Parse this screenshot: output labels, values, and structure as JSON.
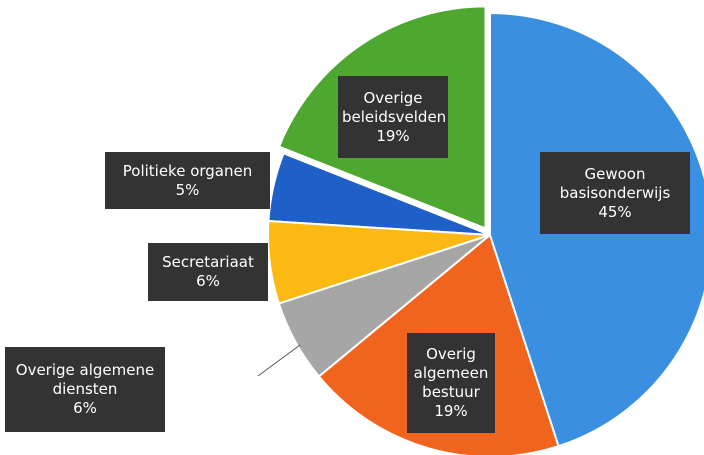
{
  "chart_data": {
    "type": "pie",
    "categories": [
      "Gewoon basisonderwijs",
      "Overig algemeen bestuur",
      "Overige algemene diensten",
      "Secretariaat",
      "Politieke organen",
      "Overige beleidsvelden"
    ],
    "values": [
      45,
      19,
      6,
      6,
      5,
      19
    ],
    "value_labels": [
      "45%",
      "19%",
      "6%",
      "6%",
      "5%",
      "19%"
    ],
    "colors": [
      "#3b8fe0",
      "#f0641e",
      "#a6a6a6",
      "#fdb913",
      "#1f5fc8",
      "#4ea72e"
    ]
  }
}
